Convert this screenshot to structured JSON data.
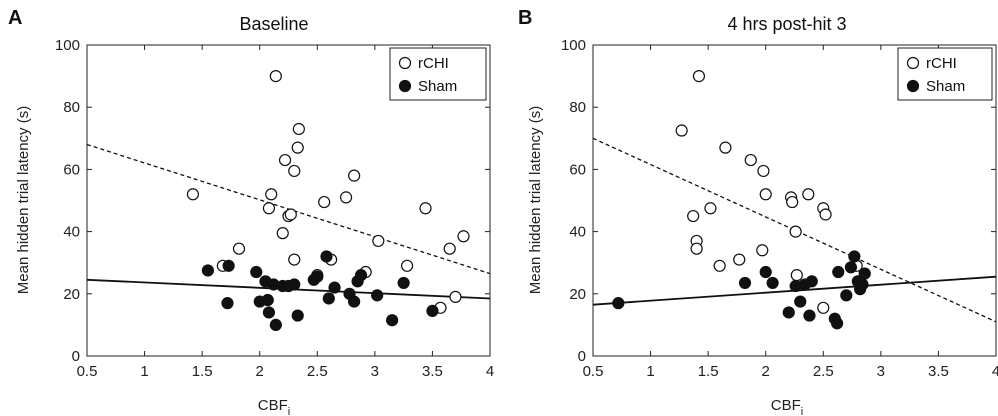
{
  "chart_data": [
    {
      "type": "scatter",
      "panel_label": "A",
      "title": "Baseline",
      "xlabel_main": "CBF",
      "xlabel_sub": "i",
      "ylabel": "Mean hidden trial latency (s)",
      "xlim": [
        0.5,
        4
      ],
      "ylim": [
        0,
        100
      ],
      "xticks": [
        0.5,
        1,
        1.5,
        2,
        2.5,
        3,
        3.5,
        4
      ],
      "xtick_labels": [
        "0.5",
        "1",
        "1.5",
        "2",
        "2.5",
        "3",
        "3.5",
        "4"
      ],
      "yticks": [
        0,
        20,
        40,
        60,
        80,
        100
      ],
      "ytick_labels": [
        "0",
        "20",
        "40",
        "60",
        "80",
        "100"
      ],
      "legend_position": "top-right",
      "series": [
        {
          "name": "rCHI",
          "marker": "open-circle",
          "points": [
            [
              1.42,
              52
            ],
            [
              1.68,
              29
            ],
            [
              1.82,
              34.5
            ],
            [
              2.08,
              47.5
            ],
            [
              2.1,
              52
            ],
            [
              2.14,
              90
            ],
            [
              2.2,
              39.5
            ],
            [
              2.22,
              63
            ],
            [
              2.25,
              45
            ],
            [
              2.27,
              45.5
            ],
            [
              2.3,
              59.5
            ],
            [
              2.33,
              67
            ],
            [
              2.34,
              73
            ],
            [
              2.3,
              31
            ],
            [
              2.5,
              26
            ],
            [
              2.56,
              49.5
            ],
            [
              2.62,
              31
            ],
            [
              2.75,
              51
            ],
            [
              2.82,
              58
            ],
            [
              2.92,
              27
            ],
            [
              3.03,
              37
            ],
            [
              3.28,
              29
            ],
            [
              3.44,
              47.5
            ],
            [
              3.57,
              15.5
            ],
            [
              3.65,
              34.5
            ],
            [
              3.7,
              19
            ],
            [
              3.77,
              38.5
            ]
          ]
        },
        {
          "name": "Sham",
          "marker": "filled-circle",
          "points": [
            [
              1.55,
              27.5
            ],
            [
              1.72,
              17
            ],
            [
              1.73,
              29
            ],
            [
              1.97,
              27
            ],
            [
              2.0,
              17.5
            ],
            [
              2.05,
              24
            ],
            [
              2.07,
              18
            ],
            [
              2.08,
              14
            ],
            [
              2.12,
              23
            ],
            [
              2.14,
              10
            ],
            [
              2.2,
              22.5
            ],
            [
              2.25,
              22.5
            ],
            [
              2.3,
              23
            ],
            [
              2.33,
              13
            ],
            [
              2.47,
              24.5
            ],
            [
              2.5,
              25.5
            ],
            [
              2.58,
              32
            ],
            [
              2.6,
              18.5
            ],
            [
              2.65,
              22
            ],
            [
              2.78,
              20
            ],
            [
              2.82,
              17.5
            ],
            [
              2.85,
              24
            ],
            [
              2.88,
              26
            ],
            [
              3.02,
              19.5
            ],
            [
              3.15,
              11.5
            ],
            [
              3.25,
              23.5
            ],
            [
              3.5,
              14.5
            ]
          ]
        }
      ],
      "fit_lines": [
        {
          "series": "rCHI",
          "style": "dashed",
          "x": [
            0.5,
            4
          ],
          "y": [
            68,
            26.5
          ]
        },
        {
          "series": "Sham",
          "style": "solid",
          "x": [
            0.5,
            4
          ],
          "y": [
            24.5,
            18.5
          ]
        }
      ]
    },
    {
      "type": "scatter",
      "panel_label": "B",
      "title": "4 hrs post-hit 3",
      "xlabel_main": "CBF",
      "xlabel_sub": "i",
      "ylabel": "Mean hidden trial latency (s)",
      "xlim": [
        0.5,
        4
      ],
      "ylim": [
        0,
        100
      ],
      "xticks": [
        0.5,
        1,
        1.5,
        2,
        2.5,
        3,
        3.5,
        4
      ],
      "xtick_labels": [
        "0.5",
        "1",
        "1.5",
        "2",
        "2.5",
        "3",
        "3.5",
        "4"
      ],
      "yticks": [
        0,
        20,
        40,
        60,
        80,
        100
      ],
      "ytick_labels": [
        "0",
        "20",
        "40",
        "60",
        "80",
        "100"
      ],
      "legend_position": "top-right",
      "series": [
        {
          "name": "rCHI",
          "marker": "open-circle",
          "points": [
            [
              1.27,
              72.5
            ],
            [
              1.37,
              45
            ],
            [
              1.4,
              37
            ],
            [
              1.4,
              34.5
            ],
            [
              1.42,
              90
            ],
            [
              1.52,
              47.5
            ],
            [
              1.6,
              29
            ],
            [
              1.65,
              67
            ],
            [
              1.77,
              31
            ],
            [
              1.87,
              63
            ],
            [
              1.97,
              34
            ],
            [
              1.98,
              59.5
            ],
            [
              2.0,
              52
            ],
            [
              2.22,
              51
            ],
            [
              2.23,
              49.5
            ],
            [
              2.26,
              40
            ],
            [
              2.27,
              26
            ],
            [
              2.37,
              52
            ],
            [
              2.5,
              47.5
            ],
            [
              2.52,
              45.5
            ],
            [
              2.5,
              15.5
            ],
            [
              2.79,
              29
            ]
          ]
        },
        {
          "name": "Sham",
          "marker": "filled-circle",
          "points": [
            [
              0.72,
              17
            ],
            [
              1.82,
              23.5
            ],
            [
              2.0,
              27
            ],
            [
              2.06,
              23.5
            ],
            [
              2.2,
              14
            ],
            [
              2.26,
              22.5
            ],
            [
              2.3,
              17.5
            ],
            [
              2.34,
              23
            ],
            [
              2.38,
              13
            ],
            [
              2.4,
              24
            ],
            [
              2.6,
              12
            ],
            [
              2.62,
              10.5
            ],
            [
              2.63,
              27
            ],
            [
              2.7,
              19.5
            ],
            [
              2.74,
              28.5
            ],
            [
              2.77,
              32
            ],
            [
              2.8,
              24
            ],
            [
              2.82,
              21.5
            ],
            [
              2.84,
              23
            ],
            [
              2.86,
              26.5
            ]
          ]
        }
      ],
      "fit_lines": [
        {
          "series": "rCHI",
          "style": "dashed",
          "x": [
            0.5,
            4
          ],
          "y": [
            70,
            11
          ]
        },
        {
          "series": "Sham",
          "style": "solid",
          "x": [
            0.5,
            4
          ],
          "y": [
            16.5,
            25.5
          ]
        }
      ]
    }
  ]
}
